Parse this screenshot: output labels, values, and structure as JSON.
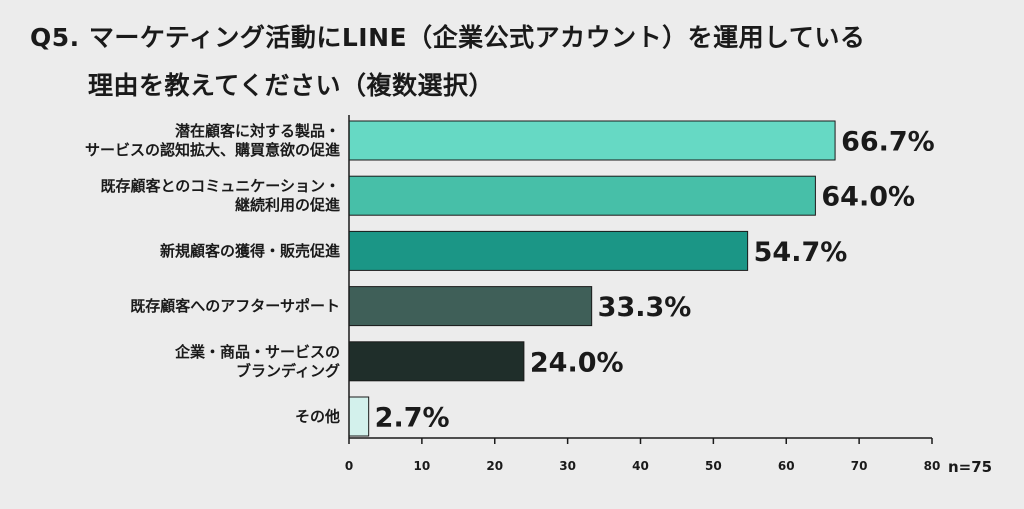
{
  "title": {
    "line1": "Q5. マーケティング活動にLINE（企業公式アカウント）を運用している",
    "line2": "理由を教えてください（複数選択）"
  },
  "note": "n=75",
  "colors": [
    "#66d9c4",
    "#47bfa8",
    "#1b9686",
    "#3f5f58",
    "#1f2e2a",
    "#d3f1ec"
  ],
  "chart_data": {
    "type": "bar",
    "orientation": "horizontal",
    "categories": [
      [
        "潜在顧客に対する製品・",
        "サービスの認知拡大、購買意欲の促進"
      ],
      [
        "既存顧客とのコミュニケーション・",
        "継続利用の促進"
      ],
      [
        "新規顧客の獲得・販売促進"
      ],
      [
        "既存顧客へのアフターサポート"
      ],
      [
        "企業・商品・サービスの",
        "ブランディング"
      ],
      [
        "その他"
      ]
    ],
    "values": [
      66.7,
      64.0,
      54.7,
      33.3,
      24.0,
      2.7
    ],
    "value_labels": [
      "66.7%",
      "64.0%",
      "54.7%",
      "33.3%",
      "24.0%",
      "2.7%"
    ],
    "xlim": [
      0,
      80
    ],
    "xticks": [
      0,
      10,
      20,
      30,
      40,
      50,
      60,
      70,
      80
    ],
    "grid": false
  }
}
